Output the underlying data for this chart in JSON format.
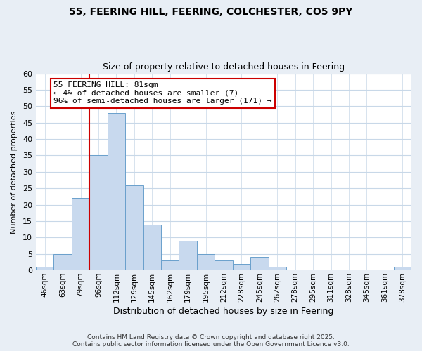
{
  "title_line1": "55, FEERING HILL, FEERING, COLCHESTER, CO5 9PY",
  "title_line2": "Size of property relative to detached houses in Feering",
  "xlabel": "Distribution of detached houses by size in Feering",
  "ylabel": "Number of detached properties",
  "bin_labels": [
    "46sqm",
    "63sqm",
    "79sqm",
    "96sqm",
    "112sqm",
    "129sqm",
    "145sqm",
    "162sqm",
    "179sqm",
    "195sqm",
    "212sqm",
    "228sqm",
    "245sqm",
    "262sqm",
    "278sqm",
    "295sqm",
    "311sqm",
    "328sqm",
    "345sqm",
    "361sqm",
    "378sqm"
  ],
  "bar_values": [
    1,
    5,
    22,
    35,
    48,
    26,
    14,
    3,
    9,
    5,
    3,
    2,
    4,
    1,
    0,
    0,
    0,
    0,
    0,
    0,
    1
  ],
  "bar_color": "#c8d9ee",
  "bar_edge_color": "#6aa0cc",
  "vline_color": "#cc0000",
  "vline_x": 2.5,
  "annotation_text": "55 FEERING HILL: 81sqm\n← 4% of detached houses are smaller (7)\n96% of semi-detached houses are larger (171) →",
  "annotation_box_color": "#ffffff",
  "annotation_box_edge": "#cc0000",
  "ylim": [
    0,
    60
  ],
  "yticks": [
    0,
    5,
    10,
    15,
    20,
    25,
    30,
    35,
    40,
    45,
    50,
    55,
    60
  ],
  "footer_line1": "Contains HM Land Registry data © Crown copyright and database right 2025.",
  "footer_line2": "Contains public sector information licensed under the Open Government Licence v3.0.",
  "bg_color": "#e8eef5",
  "plot_bg_color": "#ffffff",
  "grid_color": "#c8d8e8"
}
